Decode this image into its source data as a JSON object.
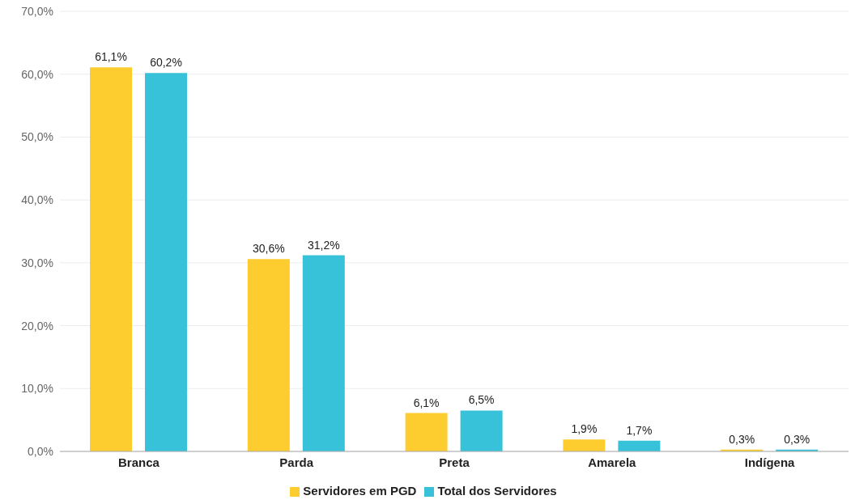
{
  "chart_data": {
    "type": "bar",
    "categories": [
      "Branca",
      "Parda",
      "Preta",
      "Amarela",
      "Indígena"
    ],
    "series": [
      {
        "name": "Servidores em PGD",
        "color": "#fdcd30",
        "values": [
          61.1,
          30.6,
          6.1,
          1.9,
          0.3
        ],
        "value_labels": [
          "61,1%",
          "30,6%",
          "6,1%",
          "1,9%",
          "0,3%"
        ]
      },
      {
        "name": "Total dos Servidores",
        "color": "#38c2da",
        "values": [
          60.2,
          31.2,
          6.5,
          1.7,
          0.3
        ],
        "value_labels": [
          "60,2%",
          "31,2%",
          "6,5%",
          "1,7%",
          "0,3%"
        ]
      }
    ],
    "ylim": [
      0,
      70
    ],
    "yticks": [
      {
        "value": 0,
        "label": "0,0%"
      },
      {
        "value": 10,
        "label": "10,0%"
      },
      {
        "value": 20,
        "label": "20,0%"
      },
      {
        "value": 30,
        "label": "30,0%"
      },
      {
        "value": 40,
        "label": "40,0%"
      },
      {
        "value": 50,
        "label": "50,0%"
      },
      {
        "value": 60,
        "label": "60,0%"
      },
      {
        "value": 70,
        "label": "70,0%"
      }
    ],
    "grid": "y",
    "legend": "bottom"
  }
}
